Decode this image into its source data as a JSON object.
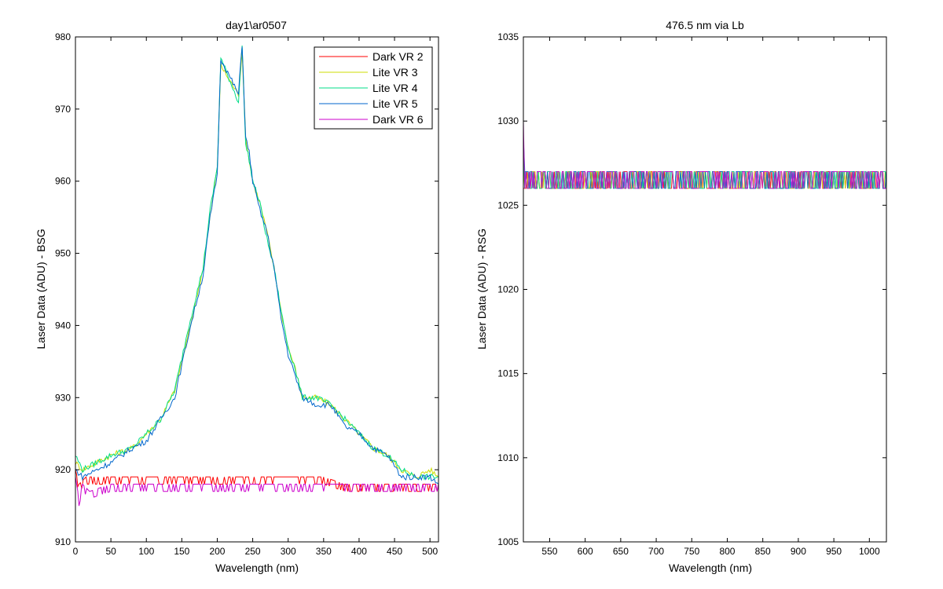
{
  "chart_data": [
    {
      "type": "line",
      "title": "day1\\ar0507",
      "xlabel": "Wavelength (nm)",
      "ylabel": "Laser Data (ADU) - BSG",
      "xlim": [
        0,
        512
      ],
      "ylim": [
        910,
        980
      ],
      "xticks": [
        0,
        50,
        100,
        150,
        200,
        250,
        300,
        350,
        400,
        450,
        500
      ],
      "yticks": [
        910,
        920,
        930,
        940,
        950,
        960,
        970,
        980
      ],
      "grid": false,
      "legend_position": "top-right",
      "series": [
        {
          "name": "Dark VR 2",
          "color": "#ff0000",
          "x": [
            0,
            5,
            15,
            30,
            60,
            100,
            150,
            200,
            250,
            300,
            350,
            380,
            400,
            450,
            512
          ],
          "y": [
            920,
            918,
            919,
            919,
            919,
            919,
            919,
            919,
            919,
            919,
            919,
            918,
            918,
            918,
            918
          ]
        },
        {
          "name": "Lite VR 3",
          "color": "#ccdd00",
          "x": [
            0,
            10,
            30,
            50,
            80,
            100,
            120,
            140,
            160,
            180,
            190,
            200,
            205,
            230,
            235,
            240,
            245,
            250,
            260,
            270,
            280,
            290,
            300,
            310,
            320,
            340,
            360,
            380,
            400,
            420,
            440,
            460,
            480,
            500,
            512
          ],
          "y": [
            921,
            920,
            921,
            922,
            923,
            925,
            927,
            931,
            939,
            948,
            955,
            962,
            976,
            972,
            978,
            966,
            963,
            960,
            957,
            953,
            948,
            942,
            937,
            934,
            930,
            930,
            929,
            927,
            925,
            923,
            922,
            920,
            919,
            920,
            919
          ]
        },
        {
          "name": "Lite VR 4",
          "color": "#00dd88",
          "x": [
            0,
            10,
            30,
            50,
            80,
            100,
            120,
            140,
            160,
            180,
            190,
            200,
            205,
            230,
            235,
            240,
            245,
            250,
            260,
            270,
            280,
            290,
            300,
            310,
            320,
            340,
            360,
            380,
            400,
            420,
            440,
            460,
            480,
            500,
            512
          ],
          "y": [
            922,
            920,
            921,
            922,
            923,
            925,
            927,
            931,
            940,
            948,
            956,
            962,
            977,
            971,
            979,
            965,
            963,
            960,
            957,
            952,
            948,
            942,
            937,
            934,
            930,
            930,
            929,
            927,
            925,
            923,
            922,
            920,
            919,
            919,
            919
          ]
        },
        {
          "name": "Lite VR 5",
          "color": "#0066cc",
          "x": [
            0,
            10,
            30,
            50,
            80,
            100,
            120,
            140,
            160,
            180,
            190,
            200,
            205,
            230,
            235,
            240,
            245,
            250,
            260,
            270,
            280,
            290,
            300,
            310,
            320,
            340,
            360,
            380,
            400,
            420,
            440,
            460,
            480,
            500,
            512
          ],
          "y": [
            920,
            919,
            920,
            921,
            923,
            924,
            927,
            930,
            939,
            947,
            955,
            961,
            977,
            972,
            979,
            966,
            964,
            960,
            956,
            953,
            948,
            941,
            936,
            933,
            930,
            929,
            929,
            926,
            925,
            923,
            922,
            919,
            919,
            919,
            918
          ]
        },
        {
          "name": "Dark VR 6",
          "color": "#cc00cc",
          "x": [
            0,
            5,
            10,
            20,
            50,
            100,
            150,
            200,
            250,
            300,
            350,
            400,
            450,
            500,
            512
          ],
          "y": [
            919,
            916,
            918,
            917,
            918,
            918,
            918,
            918,
            918,
            918,
            918,
            918,
            918,
            918,
            918
          ]
        }
      ]
    },
    {
      "type": "line",
      "title": "476.5 nm via Lb",
      "xlabel": "Wavelength (nm)",
      "ylabel": "Laser Data (ADU) - RSG",
      "xlim": [
        513,
        1024
      ],
      "ylim": [
        1005,
        1035
      ],
      "xticks": [
        550,
        600,
        650,
        700,
        750,
        800,
        850,
        900,
        950,
        1000
      ],
      "yticks": [
        1005,
        1010,
        1015,
        1020,
        1025,
        1030,
        1035
      ],
      "grid": false,
      "band_range": [
        1026,
        1027
      ],
      "series": [
        {
          "color": "#ff0000",
          "x": [
            513,
            515,
            1024
          ],
          "y": [
            1026,
            1026,
            1026
          ]
        },
        {
          "color": "#ccdd00",
          "x": [
            513,
            515,
            1024
          ],
          "y": [
            1027,
            1026,
            1027
          ]
        },
        {
          "color": "#00dd88",
          "x": [
            513,
            515,
            1024
          ],
          "y": [
            1028,
            1026,
            1027
          ]
        },
        {
          "color": "#0066cc",
          "x": [
            513,
            515,
            1024
          ],
          "y": [
            1029,
            1027,
            1027
          ]
        },
        {
          "color": "#cc00cc",
          "x": [
            513,
            515,
            1024
          ],
          "y": [
            1030,
            1026,
            1026
          ]
        }
      ]
    }
  ]
}
